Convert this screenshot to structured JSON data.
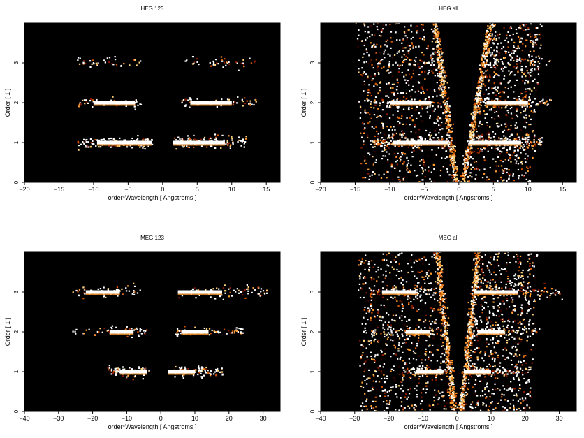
{
  "chart_data": [
    {
      "type": "heatmap",
      "title": "HEG 123",
      "xlabel": "order*Wavelength [ Angstroms ]",
      "ylabel": "Order [ 1 ]",
      "xlim": [
        -20,
        17
      ],
      "ylim": [
        0,
        4
      ],
      "xticks": [
        -20,
        -15,
        -10,
        -5,
        0,
        5,
        10,
        15
      ],
      "yticks": [
        0,
        1,
        2,
        3
      ],
      "background": "#000000",
      "colormap": [
        "#3a0000",
        "#8b1a00",
        "#d35400",
        "#ff9a2e",
        "#ffd27a",
        "#ffffff"
      ],
      "grid": false,
      "bands": [
        {
          "order": 1,
          "x_ranges": [
            [
              -12.5,
              -1.5
            ],
            [
              1.5,
              12
            ]
          ],
          "bright_ranges": [
            [
              -9.5,
              -1.5
            ],
            [
              1.5,
              9
            ]
          ],
          "spread": 0.07,
          "density": 1.0
        },
        {
          "order": 2,
          "x_ranges": [
            [
              -12.5,
              -3
            ],
            [
              2.5,
              13.5
            ]
          ],
          "bright_ranges": [
            [
              -10,
              -4
            ],
            [
              4,
              10
            ]
          ],
          "spread": 0.06,
          "density": 0.45
        },
        {
          "order": 3,
          "x_ranges": [
            [
              -12.5,
              -3
            ],
            [
              3,
              13.5
            ]
          ],
          "bright_ranges": [],
          "spread": 0.07,
          "density": 0.3
        }
      ],
      "wedges": []
    },
    {
      "type": "heatmap",
      "title": "HEG all",
      "xlabel": "order*Wavelength [ Angstroms ]",
      "ylabel": "Order [ 1 ]",
      "xlim": [
        -20,
        17
      ],
      "ylim": [
        0,
        4
      ],
      "xticks": [
        -20,
        -15,
        -10,
        -5,
        0,
        5,
        10,
        15
      ],
      "yticks": [
        0,
        1,
        2,
        3
      ],
      "background": "#000000",
      "colormap": [
        "#3a0000",
        "#8b1a00",
        "#d35400",
        "#ff9a2e",
        "#ffd27a",
        "#ffffff"
      ],
      "grid": false,
      "bands": [
        {
          "order": 1,
          "x_ranges": [
            [
              -12.5,
              -1.5
            ],
            [
              1.5,
              12
            ]
          ],
          "bright_ranges": [
            [
              -9.5,
              -1.5
            ],
            [
              1.5,
              9
            ]
          ],
          "spread": 0.07,
          "density": 1.0
        },
        {
          "order": 2,
          "x_ranges": [
            [
              -12.5,
              -3
            ],
            [
              2.5,
              13.5
            ]
          ],
          "bright_ranges": [
            [
              -10,
              -4
            ],
            [
              4,
              10
            ]
          ],
          "spread": 0.06,
          "density": 0.5
        },
        {
          "order": 3,
          "x_ranges": [
            [
              -12.5,
              -3
            ],
            [
              3,
              13.5
            ]
          ],
          "bright_ranges": [],
          "spread": 0.07,
          "density": 0.35
        }
      ],
      "wedges": [
        {
          "side": "left",
          "x_at_order0": -0.5,
          "x_at_order4": -3.5
        },
        {
          "side": "right",
          "x_at_order0": 0.5,
          "x_at_order4": 4.5
        }
      ]
    },
    {
      "type": "heatmap",
      "title": "MEG 123",
      "xlabel": "order*Wavelength [ Angstroms ]",
      "ylabel": "Order [ 1 ]",
      "xlim": [
        -40,
        35
      ],
      "ylim": [
        0,
        4
      ],
      "xticks": [
        -40,
        -30,
        -20,
        -10,
        0,
        10,
        20,
        30
      ],
      "yticks": [
        0,
        1,
        2,
        3
      ],
      "background": "#000000",
      "colormap": [
        "#3a0000",
        "#8b1a00",
        "#d35400",
        "#ff9a2e",
        "#ffd27a",
        "#ffffff"
      ],
      "grid": false,
      "bands": [
        {
          "order": 1,
          "x_ranges": [
            [
              -16,
              -3
            ],
            [
              3,
              18
            ]
          ],
          "bright_ranges": [
            [
              -12,
              -4
            ],
            [
              2,
              10
            ]
          ],
          "spread": 0.06,
          "density": 1.0
        },
        {
          "order": 2,
          "x_ranges": [
            [
              -26,
              -4
            ],
            [
              4,
              24
            ]
          ],
          "bright_ranges": [
            [
              -15,
              -8
            ],
            [
              6,
              14
            ]
          ],
          "spread": 0.06,
          "density": 0.45
        },
        {
          "order": 3,
          "x_ranges": [
            [
              -26,
              -6
            ],
            [
              5,
              31
            ]
          ],
          "bright_ranges": [
            [
              -22,
              -12
            ],
            [
              5,
              18
            ]
          ],
          "spread": 0.08,
          "density": 0.55
        }
      ],
      "wedges": []
    },
    {
      "type": "heatmap",
      "title": "MEG all",
      "xlabel": "order*Wavelength [ Angstroms ]",
      "ylabel": "Order [ 1 ]",
      "xlim": [
        -40,
        35
      ],
      "ylim": [
        0,
        4
      ],
      "xticks": [
        -40,
        -30,
        -20,
        -10,
        0,
        10,
        20,
        30
      ],
      "yticks": [
        0,
        1,
        2,
        3
      ],
      "background": "#000000",
      "colormap": [
        "#3a0000",
        "#8b1a00",
        "#d35400",
        "#ff9a2e",
        "#ffd27a",
        "#ffffff"
      ],
      "grid": false,
      "bands": [
        {
          "order": 1,
          "x_ranges": [
            [
              -16,
              -3
            ],
            [
              3,
              18
            ]
          ],
          "bright_ranges": [
            [
              -12,
              -4
            ],
            [
              2,
              10
            ]
          ],
          "spread": 0.06,
          "density": 1.0
        },
        {
          "order": 2,
          "x_ranges": [
            [
              -26,
              -4
            ],
            [
              4,
              24
            ]
          ],
          "bright_ranges": [
            [
              -15,
              -8
            ],
            [
              6,
              14
            ]
          ],
          "spread": 0.06,
          "density": 0.5
        },
        {
          "order": 3,
          "x_ranges": [
            [
              -26,
              -6
            ],
            [
              5,
              31
            ]
          ],
          "bright_ranges": [
            [
              -22,
              -12
            ],
            [
              5,
              18
            ]
          ],
          "spread": 0.08,
          "density": 0.6
        }
      ],
      "wedges": [
        {
          "side": "left",
          "x_at_order0": -1,
          "x_at_order4": -6
        },
        {
          "side": "right",
          "x_at_order0": 1,
          "x_at_order4": 6
        }
      ]
    }
  ]
}
